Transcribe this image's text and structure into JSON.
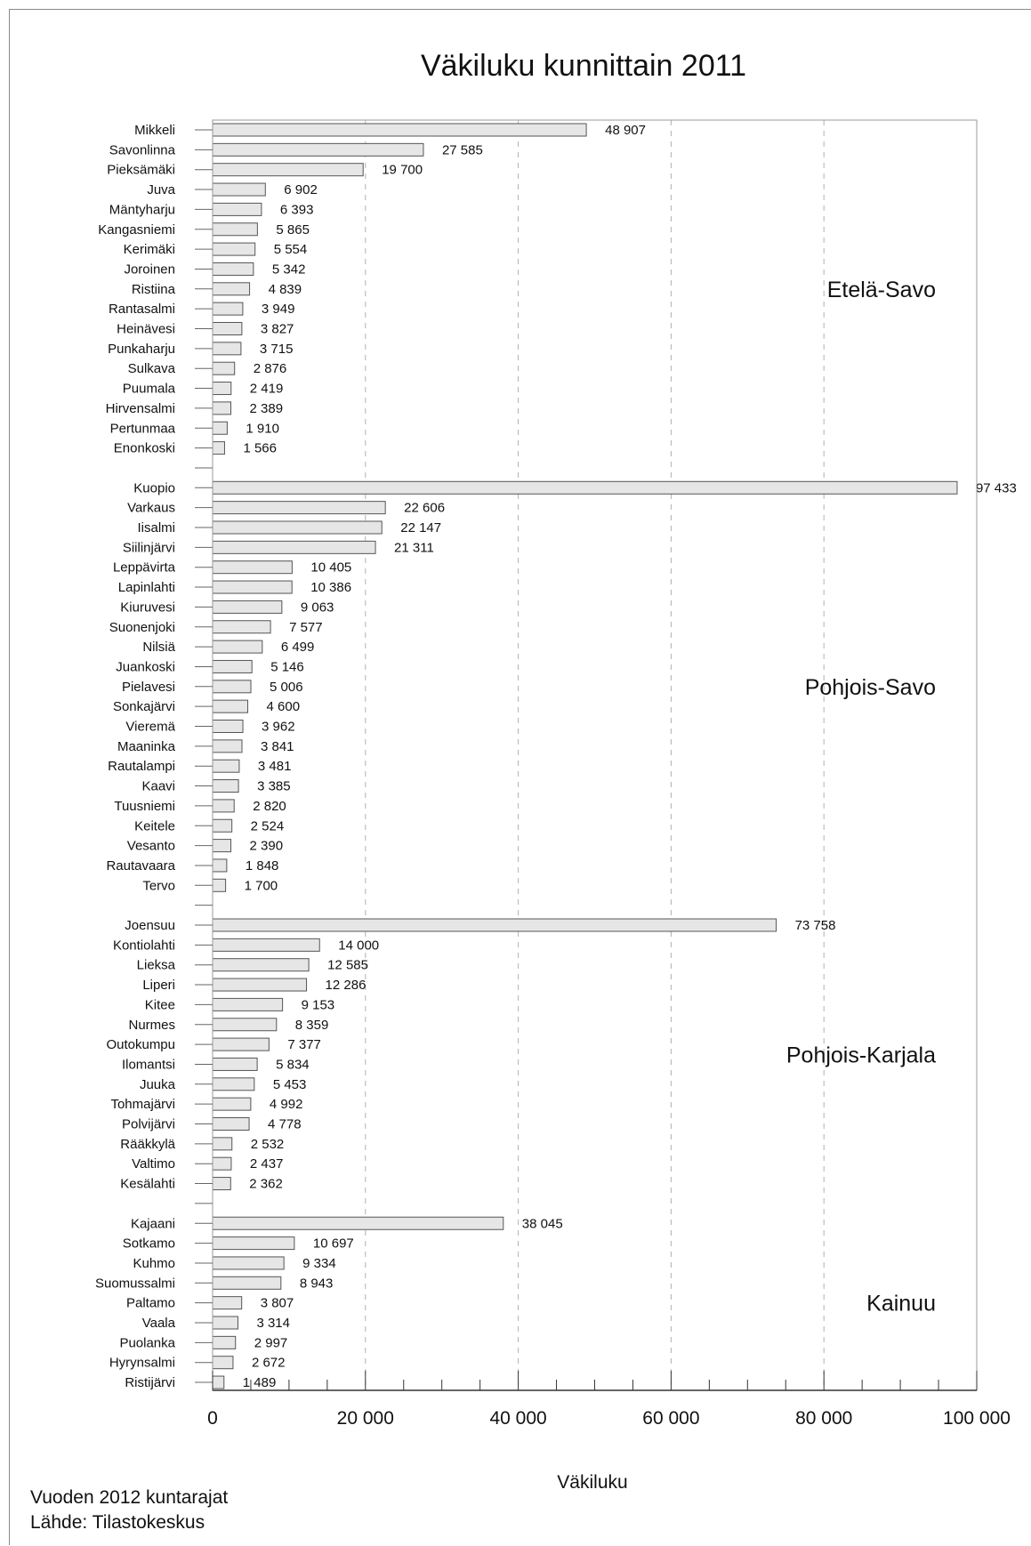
{
  "chart_data": {
    "type": "bar",
    "orientation": "horizontal",
    "title": "Väkiluku kunnittain 2011",
    "xlabel": "Väkiluku",
    "xlim": [
      0,
      100000
    ],
    "x_ticks": [
      0,
      20000,
      40000,
      60000,
      80000,
      100000
    ],
    "x_tick_labels": [
      "0",
      "20 000",
      "40 000",
      "60 000",
      "80 000",
      "100 000"
    ],
    "grid": "vertical dashed",
    "bar_color": "#e6e6e6",
    "groups": [
      {
        "name": "Etelä-Savo",
        "items": [
          {
            "label": "Mikkeli",
            "value": 48907,
            "value_label": "48 907"
          },
          {
            "label": "Savonlinna",
            "value": 27585,
            "value_label": "27 585"
          },
          {
            "label": "Pieksämäki",
            "value": 19700,
            "value_label": "19 700"
          },
          {
            "label": "Juva",
            "value": 6902,
            "value_label": "6 902"
          },
          {
            "label": "Mäntyharju",
            "value": 6393,
            "value_label": "6 393"
          },
          {
            "label": "Kangasniemi",
            "value": 5865,
            "value_label": "5 865"
          },
          {
            "label": "Kerimäki",
            "value": 5554,
            "value_label": "5 554"
          },
          {
            "label": "Joroinen",
            "value": 5342,
            "value_label": "5 342"
          },
          {
            "label": "Ristiina",
            "value": 4839,
            "value_label": "4 839"
          },
          {
            "label": "Rantasalmi",
            "value": 3949,
            "value_label": "3 949"
          },
          {
            "label": "Heinävesi",
            "value": 3827,
            "value_label": "3 827"
          },
          {
            "label": "Punkaharju",
            "value": 3715,
            "value_label": "3 715"
          },
          {
            "label": "Sulkava",
            "value": 2876,
            "value_label": "2 876"
          },
          {
            "label": "Puumala",
            "value": 2419,
            "value_label": "2 419"
          },
          {
            "label": "Hirvensalmi",
            "value": 2389,
            "value_label": "2 389"
          },
          {
            "label": "Pertunmaa",
            "value": 1910,
            "value_label": "1 910"
          },
          {
            "label": "Enonkoski",
            "value": 1566,
            "value_label": "1 566"
          }
        ]
      },
      {
        "name": "Pohjois-Savo",
        "items": [
          {
            "label": "Kuopio",
            "value": 97433,
            "value_label": "97 433"
          },
          {
            "label": "Varkaus",
            "value": 22606,
            "value_label": "22 606"
          },
          {
            "label": "Iisalmi",
            "value": 22147,
            "value_label": "22 147"
          },
          {
            "label": "Siilinjärvi",
            "value": 21311,
            "value_label": "21 311"
          },
          {
            "label": "Leppävirta",
            "value": 10405,
            "value_label": "10 405"
          },
          {
            "label": "Lapinlahti",
            "value": 10386,
            "value_label": "10 386"
          },
          {
            "label": "Kiuruvesi",
            "value": 9063,
            "value_label": "9 063"
          },
          {
            "label": "Suonenjoki",
            "value": 7577,
            "value_label": "7 577"
          },
          {
            "label": "Nilsiä",
            "value": 6499,
            "value_label": "6 499"
          },
          {
            "label": "Juankoski",
            "value": 5146,
            "value_label": "5 146"
          },
          {
            "label": "Pielavesi",
            "value": 5006,
            "value_label": "5 006"
          },
          {
            "label": "Sonkajärvi",
            "value": 4600,
            "value_label": "4 600"
          },
          {
            "label": "Vieremä",
            "value": 3962,
            "value_label": "3 962"
          },
          {
            "label": "Maaninka",
            "value": 3841,
            "value_label": "3 841"
          },
          {
            "label": "Rautalampi",
            "value": 3481,
            "value_label": "3 481"
          },
          {
            "label": "Kaavi",
            "value": 3385,
            "value_label": "3 385"
          },
          {
            "label": "Tuusniemi",
            "value": 2820,
            "value_label": "2 820"
          },
          {
            "label": "Keitele",
            "value": 2524,
            "value_label": "2 524"
          },
          {
            "label": "Vesanto",
            "value": 2390,
            "value_label": "2 390"
          },
          {
            "label": "Rautavaara",
            "value": 1848,
            "value_label": "1 848"
          },
          {
            "label": "Tervo",
            "value": 1700,
            "value_label": "1 700"
          }
        ]
      },
      {
        "name": "Pohjois-Karjala",
        "items": [
          {
            "label": "Joensuu",
            "value": 73758,
            "value_label": "73 758"
          },
          {
            "label": "Kontiolahti",
            "value": 14000,
            "value_label": "14 000"
          },
          {
            "label": "Lieksa",
            "value": 12585,
            "value_label": "12 585"
          },
          {
            "label": "Liperi",
            "value": 12286,
            "value_label": "12 286"
          },
          {
            "label": "Kitee",
            "value": 9153,
            "value_label": "9 153"
          },
          {
            "label": "Nurmes",
            "value": 8359,
            "value_label": "8 359"
          },
          {
            "label": "Outokumpu",
            "value": 7377,
            "value_label": "7 377"
          },
          {
            "label": "Ilomantsi",
            "value": 5834,
            "value_label": "5 834"
          },
          {
            "label": "Juuka",
            "value": 5453,
            "value_label": "5 453"
          },
          {
            "label": "Tohmajärvi",
            "value": 4992,
            "value_label": "4 992"
          },
          {
            "label": "Polvijärvi",
            "value": 4778,
            "value_label": "4 778"
          },
          {
            "label": "Rääkkylä",
            "value": 2532,
            "value_label": "2 532"
          },
          {
            "label": "Valtimo",
            "value": 2437,
            "value_label": "2 437"
          },
          {
            "label": "Kesälahti",
            "value": 2362,
            "value_label": "2 362"
          }
        ]
      },
      {
        "name": "Kainuu",
        "items": [
          {
            "label": "Kajaani",
            "value": 38045,
            "value_label": "38 045"
          },
          {
            "label": "Sotkamo",
            "value": 10697,
            "value_label": "10 697"
          },
          {
            "label": "Kuhmo",
            "value": 9334,
            "value_label": "9 334"
          },
          {
            "label": "Suomussalmi",
            "value": 8943,
            "value_label": "8 943"
          },
          {
            "label": "Paltamo",
            "value": 3807,
            "value_label": "3 807"
          },
          {
            "label": "Vaala",
            "value": 3314,
            "value_label": "3 314"
          },
          {
            "label": "Puolanka",
            "value": 2997,
            "value_label": "2 997"
          },
          {
            "label": "Hyrynsalmi",
            "value": 2672,
            "value_label": "2 672"
          },
          {
            "label": "Ristijärvi",
            "value": 1489,
            "value_label": "1 489"
          }
        ]
      }
    ]
  },
  "footer": {
    "boundaries_note": "Vuoden 2012 kuntarajat",
    "source": "Lähde: Tilastokeskus"
  }
}
